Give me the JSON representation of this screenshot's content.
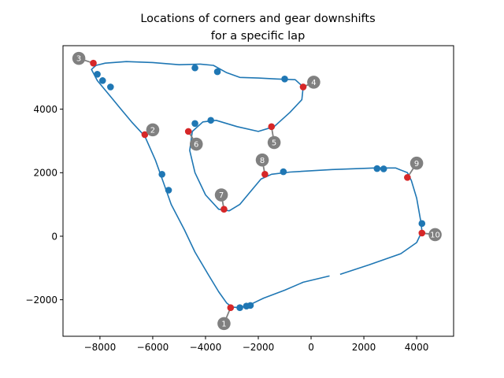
{
  "chart_data": {
    "type": "line",
    "title_lines": [
      "Locations of corners and gear downshifts",
      "for a specific lap"
    ],
    "xlabel": "",
    "ylabel": "",
    "xlim": [
      -9400,
      5400
    ],
    "ylim": [
      -3150,
      6000
    ],
    "xticks": [
      -8000,
      -6000,
      -4000,
      -2000,
      0,
      2000,
      4000
    ],
    "xtick_labels": [
      "−8000",
      "−6000",
      "−4000",
      "−2000",
      "0",
      "2000",
      "4000"
    ],
    "yticks": [
      -2000,
      0,
      2000,
      4000
    ],
    "ytick_labels": [
      "−2000",
      "0",
      "2000",
      "4000"
    ],
    "colors": {
      "track": "#1f77b4",
      "downshift": "#1f77b4",
      "corner": "#d62728",
      "label_marker": "#808080",
      "label_text": "#ffffff"
    },
    "track": [
      [
        1100,
        -1200
      ],
      [
        2200,
        -900
      ],
      [
        3400,
        -550
      ],
      [
        4000,
        -200
      ],
      [
        4200,
        150
      ],
      [
        4170,
        400
      ],
      [
        4000,
        1200
      ],
      [
        3800,
        1750
      ],
      [
        3650,
        2000
      ],
      [
        3200,
        2150
      ],
      [
        2400,
        2150
      ],
      [
        800,
        2100
      ],
      [
        -800,
        2020
      ],
      [
        -1500,
        1950
      ],
      [
        -1900,
        1800
      ],
      [
        -2300,
        1400
      ],
      [
        -2700,
        1000
      ],
      [
        -3100,
        800
      ],
      [
        -3500,
        850
      ],
      [
        -4000,
        1300
      ],
      [
        -4400,
        2000
      ],
      [
        -4600,
        2700
      ],
      [
        -4500,
        3300
      ],
      [
        -4100,
        3600
      ],
      [
        -3600,
        3650
      ],
      [
        -2800,
        3450
      ],
      [
        -2000,
        3300
      ],
      [
        -1400,
        3450
      ],
      [
        -800,
        3900
      ],
      [
        -350,
        4300
      ],
      [
        -300,
        4700
      ],
      [
        -600,
        4930
      ],
      [
        -1300,
        4950
      ],
      [
        -2000,
        4980
      ],
      [
        -2700,
        5000
      ],
      [
        -3200,
        5150
      ],
      [
        -3700,
        5380
      ],
      [
        -4200,
        5420
      ],
      [
        -5000,
        5400
      ],
      [
        -6000,
        5470
      ],
      [
        -7000,
        5500
      ],
      [
        -7800,
        5450
      ],
      [
        -8150,
        5380
      ],
      [
        -8320,
        5250
      ],
      [
        -8100,
        4900
      ],
      [
        -7700,
        4500
      ],
      [
        -7200,
        4000
      ],
      [
        -6800,
        3600
      ],
      [
        -6300,
        3150
      ],
      [
        -5900,
        2400
      ],
      [
        -5600,
        1700
      ],
      [
        -5300,
        1000
      ],
      [
        -4800,
        200
      ],
      [
        -4400,
        -500
      ],
      [
        -3900,
        -1200
      ],
      [
        -3500,
        -1750
      ],
      [
        -3200,
        -2100
      ],
      [
        -3000,
        -2230
      ],
      [
        -2700,
        -2250
      ],
      [
        -2300,
        -2150
      ],
      [
        -1800,
        -1950
      ],
      [
        -1000,
        -1700
      ],
      [
        -300,
        -1450
      ],
      [
        700,
        -1250
      ]
    ],
    "downshifts": [
      [
        -8100,
        5100
      ],
      [
        -7900,
        4900
      ],
      [
        -7600,
        4700
      ],
      [
        -4400,
        5300
      ],
      [
        -3550,
        5180
      ],
      [
        -1000,
        4950
      ],
      [
        -3800,
        3650
      ],
      [
        -4400,
        3550
      ],
      [
        -5650,
        1950
      ],
      [
        -5400,
        1450
      ],
      [
        -1050,
        2030
      ],
      [
        2500,
        2130
      ],
      [
        2750,
        2120
      ],
      [
        4200,
        400
      ],
      [
        -2700,
        -2250
      ],
      [
        -2450,
        -2200
      ],
      [
        -2300,
        -2180
      ]
    ],
    "corners": [
      {
        "label": "1",
        "x": -3050,
        "y": -2250,
        "lx": -3300,
        "ly": -2750
      },
      {
        "label": "2",
        "x": -6300,
        "y": 3200,
        "lx": -6000,
        "ly": 3350
      },
      {
        "label": "3",
        "x": -8250,
        "y": 5450,
        "lx": -8800,
        "ly": 5600
      },
      {
        "label": "4",
        "x": -300,
        "y": 4700,
        "lx": 100,
        "ly": 4850
      },
      {
        "label": "5",
        "x": -1500,
        "y": 3450,
        "lx": -1400,
        "ly": 2950
      },
      {
        "label": "6",
        "x": -4650,
        "y": 3300,
        "lx": -4350,
        "ly": 2900
      },
      {
        "label": "7",
        "x": -3300,
        "y": 850,
        "lx": -3400,
        "ly": 1300
      },
      {
        "label": "8",
        "x": -1750,
        "y": 1950,
        "lx": -1850,
        "ly": 2400
      },
      {
        "label": "9",
        "x": 3650,
        "y": 1850,
        "lx": 4000,
        "ly": 2300
      },
      {
        "label": "10",
        "x": 4200,
        "y": 100,
        "lx": 4700,
        "ly": 50
      }
    ]
  }
}
